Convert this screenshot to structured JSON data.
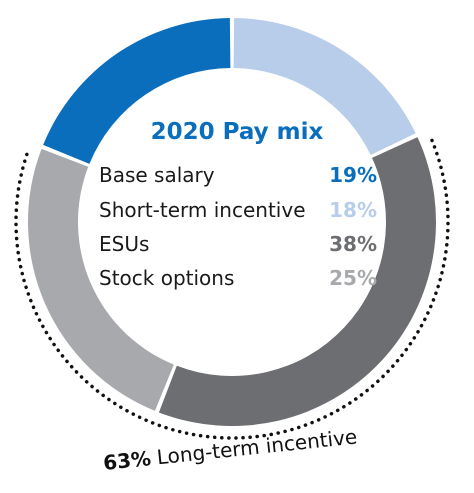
{
  "chart_data": {
    "type": "pie",
    "title": "2020 Pay mix",
    "categories": [
      "Base salary",
      "Short-term incentive",
      "ESUs",
      "Stock options"
    ],
    "values": [
      19,
      18,
      38,
      25
    ],
    "value_labels": [
      "19%",
      "18%",
      "38%",
      "25%"
    ],
    "colors": [
      "#0a6ebd",
      "#b8cde9",
      "#6d6e71",
      "#a7a9ac"
    ],
    "title_color": "#0a6ebd",
    "annotation": {
      "value": "63%",
      "label": "Long-term incentive"
    }
  }
}
